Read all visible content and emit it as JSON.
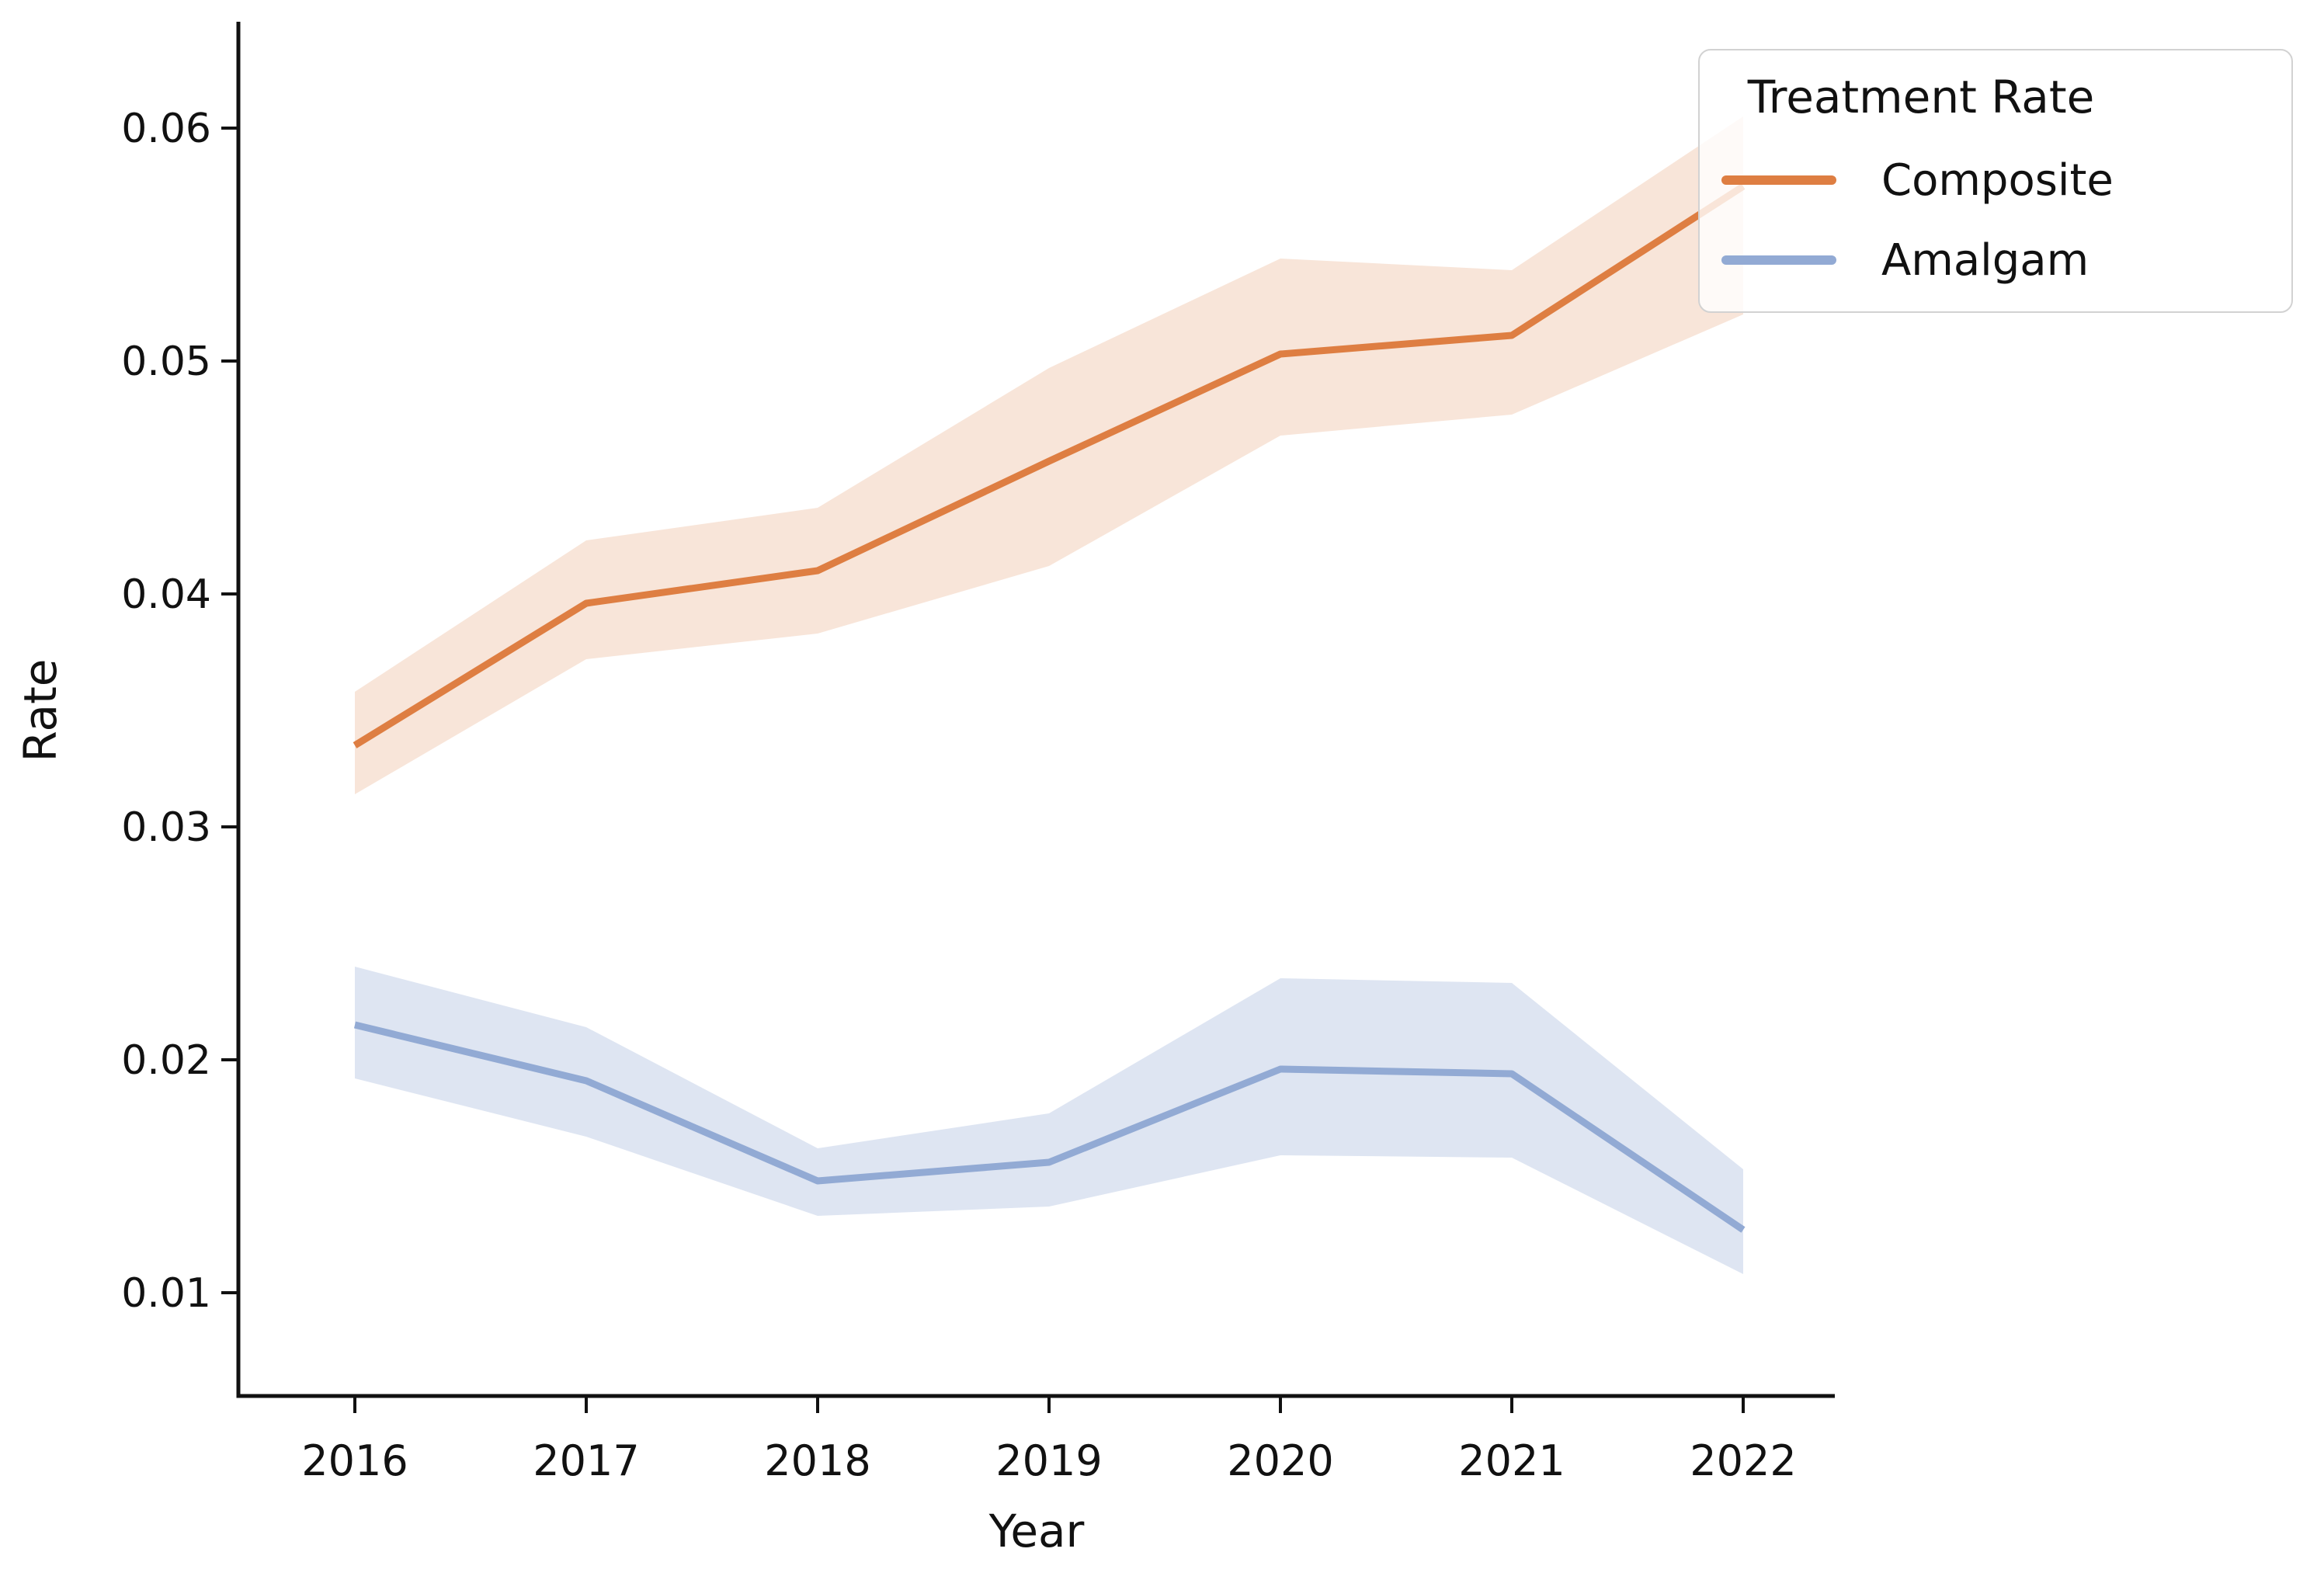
{
  "figure": {
    "background": "#ffffff"
  },
  "chart_data": {
    "type": "line",
    "title": "",
    "xlabel": "Year",
    "ylabel": "Rate",
    "x": [
      2016,
      2017,
      2018,
      2019,
      2020,
      2021,
      2022
    ],
    "x_tick_labels": [
      "2016",
      "2017",
      "2018",
      "2019",
      "2020",
      "2021",
      "2022"
    ],
    "y_tick_values": [
      0.01,
      0.02,
      0.03,
      0.04,
      0.05,
      0.06
    ],
    "y_tick_labels": [
      "0.01",
      "0.02",
      "0.03",
      "0.04",
      "0.05",
      "0.06"
    ],
    "xlim": [
      2015.5,
      2022.4
    ],
    "ylim": [
      0.0056,
      0.0646
    ],
    "grid": false,
    "series": [
      {
        "name": "Composite",
        "color": "#de7e42",
        "band_fill_opacity": 0.2,
        "values": [
          0.0335,
          0.0396,
          0.041,
          0.0457,
          0.0503,
          0.0511,
          0.0575
        ],
        "band_lower": [
          0.0314,
          0.0372,
          0.0383,
          0.0412,
          0.0468,
          0.0477,
          0.052
        ],
        "band_upper": [
          0.0358,
          0.0423,
          0.0437,
          0.0497,
          0.0544,
          0.0539,
          0.0605
        ]
      },
      {
        "name": "Amalgam",
        "color": "#92aad4",
        "band_fill_opacity": 0.3,
        "values": [
          0.0215,
          0.0191,
          0.0148,
          0.0156,
          0.0196,
          0.0194,
          0.0127
        ],
        "band_lower": [
          0.0192,
          0.0167,
          0.0133,
          0.0137,
          0.0159,
          0.0158,
          0.0108
        ],
        "band_upper": [
          0.024,
          0.0214,
          0.0162,
          0.0177,
          0.0235,
          0.0233,
          0.0153
        ]
      }
    ],
    "legend": {
      "title": "Treatment Rate",
      "position": "upper right",
      "entries": [
        "Composite",
        "Amalgam"
      ]
    }
  }
}
